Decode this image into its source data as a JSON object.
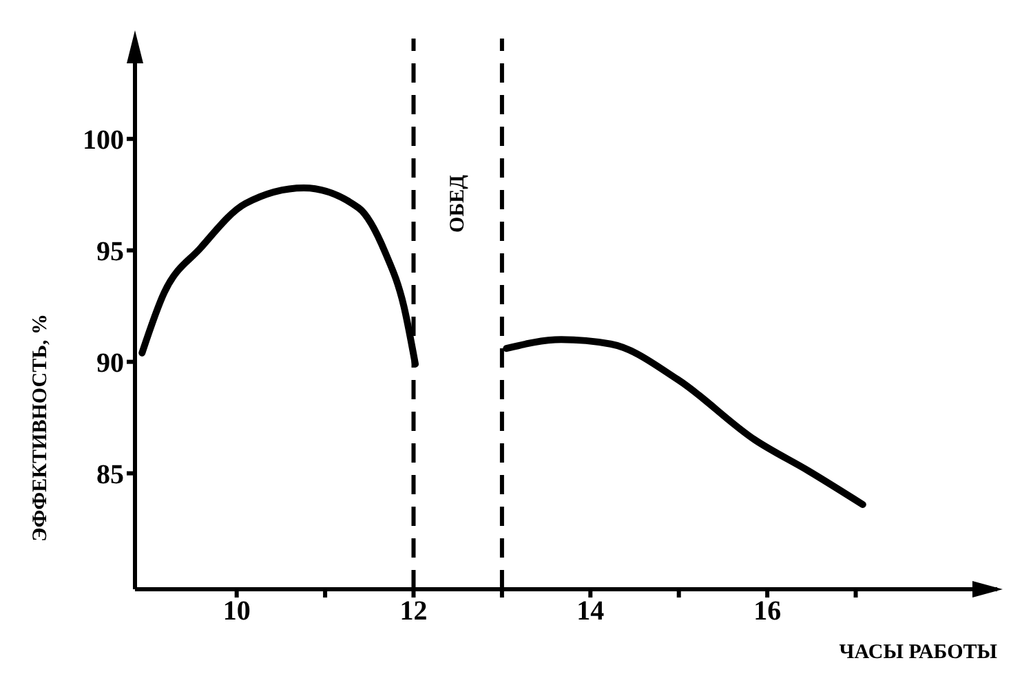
{
  "chart_data": {
    "type": "line",
    "xlabel": "ЧАСЫ РАБОТЫ",
    "ylabel": "ЭФФЕКТИВНОСТЬ, %",
    "annotations": [
      "ОБЕД"
    ],
    "series": [
      {
        "color": "#000000",
        "x": [
          8.93,
          9.18,
          9.59,
          10.1,
          10.76,
          11.38,
          11.68,
          11.89,
          12.02
        ],
        "values": [
          90.4,
          93.1,
          95.1,
          97.1,
          97.8,
          96.9,
          94.9,
          92.5,
          89.9
        ]
      },
      {
        "color": "#000000",
        "x": [
          13.05,
          13.67,
          14.23,
          14.99,
          15.86,
          16.47,
          17.08
        ],
        "values": [
          90.6,
          91.0,
          90.8,
          89.2,
          86.5,
          85.1,
          83.6
        ]
      }
    ],
    "ref_lines": [
      {
        "axis": "x",
        "value": 12,
        "color": "#000000",
        "line_style": "dashed"
      },
      {
        "axis": "x",
        "value": 13,
        "color": "#000000",
        "line_style": "dashed"
      }
    ],
    "xlim": [
      8.85,
      18.6
    ],
    "xticks": [
      10,
      {
        "value": 11,
        "label": null
      },
      12,
      {
        "value": 13,
        "label": null
      },
      14,
      {
        "value": 15,
        "label": null
      },
      16,
      {
        "value": 17,
        "label": null
      }
    ],
    "ylim": [
      79.8,
      104.5
    ],
    "yticks": [
      85,
      90,
      95,
      100
    ],
    "grid": false,
    "legend": false,
    "marker": "none",
    "line_style": "solid"
  }
}
